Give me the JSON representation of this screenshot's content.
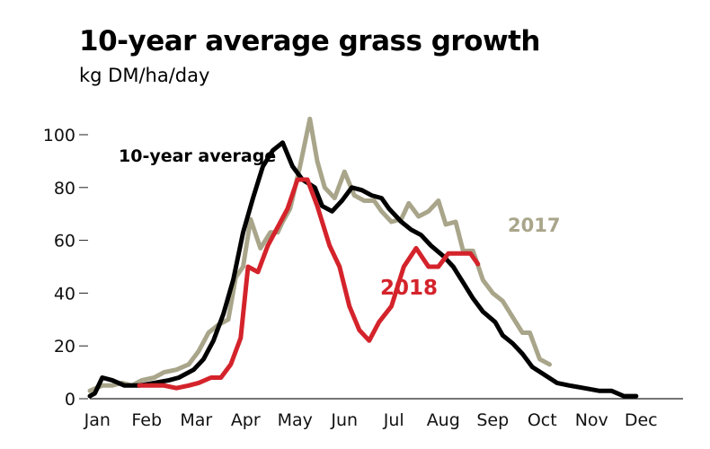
{
  "chart_data": {
    "type": "line",
    "title": "10-year average grass growth",
    "subtitle": "kg DM/ha/day",
    "xlabel": "",
    "ylabel": "",
    "xlim": [
      0,
      12
    ],
    "ylim": [
      0,
      100
    ],
    "yticks": [
      0,
      20,
      40,
      60,
      80,
      100
    ],
    "month_labels": [
      "Jan",
      "Feb",
      "Mar",
      "Apr",
      "May",
      "Jun",
      "Jul",
      "Aug",
      "Sep",
      "Oct",
      "Nov",
      "Dec"
    ],
    "grid": false,
    "series": [
      {
        "name": "10-year average",
        "color": "#000000",
        "label_anchor": "start",
        "points": [
          [
            0.0,
            1
          ],
          [
            0.1,
            2
          ],
          [
            0.25,
            8
          ],
          [
            0.45,
            7
          ],
          [
            0.7,
            5
          ],
          [
            1.0,
            5
          ],
          [
            1.3,
            6
          ],
          [
            1.6,
            7
          ],
          [
            1.8,
            8
          ],
          [
            2.1,
            11
          ],
          [
            2.3,
            15
          ],
          [
            2.5,
            22
          ],
          [
            2.7,
            32
          ],
          [
            2.9,
            45
          ],
          [
            3.1,
            63
          ],
          [
            3.3,
            76
          ],
          [
            3.5,
            88
          ],
          [
            3.7,
            94
          ],
          [
            3.9,
            97
          ],
          [
            4.1,
            88
          ],
          [
            4.3,
            83
          ],
          [
            4.55,
            80
          ],
          [
            4.7,
            73
          ],
          [
            4.9,
            71
          ],
          [
            5.1,
            75
          ],
          [
            5.3,
            80
          ],
          [
            5.5,
            79
          ],
          [
            5.7,
            77
          ],
          [
            5.9,
            76
          ],
          [
            6.05,
            72
          ],
          [
            6.3,
            67
          ],
          [
            6.5,
            64
          ],
          [
            6.7,
            62
          ],
          [
            6.9,
            58
          ],
          [
            7.15,
            54
          ],
          [
            7.35,
            50
          ],
          [
            7.55,
            44
          ],
          [
            7.75,
            38
          ],
          [
            7.95,
            33
          ],
          [
            8.2,
            29
          ],
          [
            8.35,
            24
          ],
          [
            8.55,
            21
          ],
          [
            8.75,
            17
          ],
          [
            8.95,
            12
          ],
          [
            9.2,
            9
          ],
          [
            9.45,
            6
          ],
          [
            9.7,
            5
          ],
          [
            10.0,
            4
          ],
          [
            10.3,
            3
          ],
          [
            10.55,
            3
          ],
          [
            10.8,
            1
          ],
          [
            11.05,
            1
          ]
        ]
      },
      {
        "name": "2017",
        "color": "#a8a58a",
        "label_anchor": "start",
        "points": [
          [
            0.0,
            3
          ],
          [
            0.25,
            5
          ],
          [
            0.45,
            5
          ],
          [
            0.65,
            6
          ],
          [
            0.85,
            5
          ],
          [
            1.05,
            7
          ],
          [
            1.3,
            8
          ],
          [
            1.5,
            10
          ],
          [
            1.75,
            11
          ],
          [
            2.0,
            13
          ],
          [
            2.2,
            18
          ],
          [
            2.4,
            25
          ],
          [
            2.6,
            28
          ],
          [
            2.8,
            30
          ],
          [
            2.95,
            46
          ],
          [
            3.1,
            50
          ],
          [
            3.25,
            68
          ],
          [
            3.45,
            57
          ],
          [
            3.65,
            63
          ],
          [
            3.8,
            63
          ],
          [
            3.9,
            67
          ],
          [
            4.05,
            72
          ],
          [
            4.25,
            88
          ],
          [
            4.45,
            106
          ],
          [
            4.6,
            90
          ],
          [
            4.75,
            80
          ],
          [
            4.95,
            76
          ],
          [
            5.15,
            86
          ],
          [
            5.35,
            77
          ],
          [
            5.55,
            75
          ],
          [
            5.75,
            75
          ],
          [
            5.9,
            71
          ],
          [
            6.1,
            67
          ],
          [
            6.3,
            68
          ],
          [
            6.45,
            74
          ],
          [
            6.65,
            69
          ],
          [
            6.85,
            71
          ],
          [
            7.05,
            75
          ],
          [
            7.2,
            66
          ],
          [
            7.4,
            67
          ],
          [
            7.55,
            56
          ],
          [
            7.75,
            56
          ],
          [
            7.95,
            45
          ],
          [
            8.15,
            40
          ],
          [
            8.35,
            37
          ],
          [
            8.55,
            31
          ],
          [
            8.75,
            25
          ],
          [
            8.9,
            25
          ],
          [
            9.1,
            15
          ],
          [
            9.3,
            13
          ]
        ]
      },
      {
        "name": "2018",
        "color": "#d4232b",
        "label_anchor": "end",
        "points": [
          [
            1.0,
            5
          ],
          [
            1.25,
            5
          ],
          [
            1.5,
            5
          ],
          [
            1.75,
            4
          ],
          [
            2.0,
            5
          ],
          [
            2.2,
            6
          ],
          [
            2.45,
            8
          ],
          [
            2.65,
            8
          ],
          [
            2.85,
            13
          ],
          [
            3.05,
            23
          ],
          [
            3.2,
            50
          ],
          [
            3.4,
            48
          ],
          [
            3.6,
            58
          ],
          [
            3.8,
            65
          ],
          [
            4.0,
            72
          ],
          [
            4.2,
            83
          ],
          [
            4.4,
            83
          ],
          [
            4.6,
            73
          ],
          [
            4.85,
            58
          ],
          [
            5.05,
            50
          ],
          [
            5.25,
            35
          ],
          [
            5.45,
            26
          ],
          [
            5.65,
            22
          ],
          [
            5.85,
            29
          ],
          [
            6.1,
            35
          ],
          [
            6.35,
            50
          ],
          [
            6.6,
            57
          ],
          [
            6.85,
            50
          ],
          [
            7.05,
            50
          ],
          [
            7.25,
            55
          ],
          [
            7.5,
            55
          ],
          [
            7.7,
            55
          ],
          [
            7.85,
            51
          ]
        ]
      }
    ]
  }
}
